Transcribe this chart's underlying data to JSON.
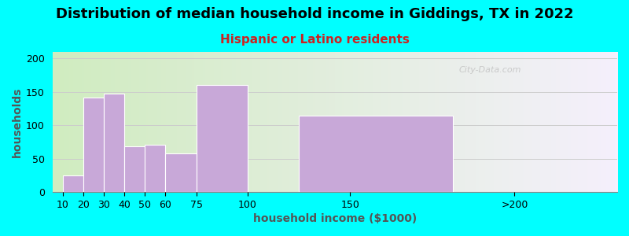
{
  "title": "Distribution of median household income in Giddings, TX in 2022",
  "subtitle": "Hispanic or Latino residents",
  "xlabel": "household income ($1000)",
  "ylabel": "households",
  "background_color": "#00FFFF",
  "plot_bg_left": "#d0ecc0",
  "plot_bg_right": "#f5f0fc",
  "bar_color": "#c8a8d8",
  "bar_edge_color": "#ffffff",
  "bar_linewidth": 0.8,
  "ylim": [
    0,
    210
  ],
  "yticks": [
    0,
    50,
    100,
    150,
    200
  ],
  "title_fontsize": 13,
  "subtitle_fontsize": 11,
  "subtitle_color": "#cc2222",
  "axis_label_fontsize": 10,
  "axis_label_color": "#555555",
  "tick_fontsize": 9,
  "watermark_text": "City-Data.com",
  "watermark_color": "#c0c0c0",
  "bar_lefts": [
    10,
    20,
    30,
    40,
    50,
    60,
    75,
    125
  ],
  "bar_widths": [
    10,
    10,
    10,
    10,
    10,
    15,
    25,
    75
  ],
  "bar_heights": [
    25,
    142,
    147,
    68,
    71,
    58,
    160,
    115
  ],
  "xtick_positions": [
    10,
    20,
    30,
    40,
    50,
    60,
    75,
    100,
    150,
    230
  ],
  "xtick_labels": [
    "10",
    "20",
    "30",
    "40",
    "50",
    "60",
    "75",
    "100",
    "150",
    ">200"
  ],
  "xlim": [
    5,
    280
  ]
}
